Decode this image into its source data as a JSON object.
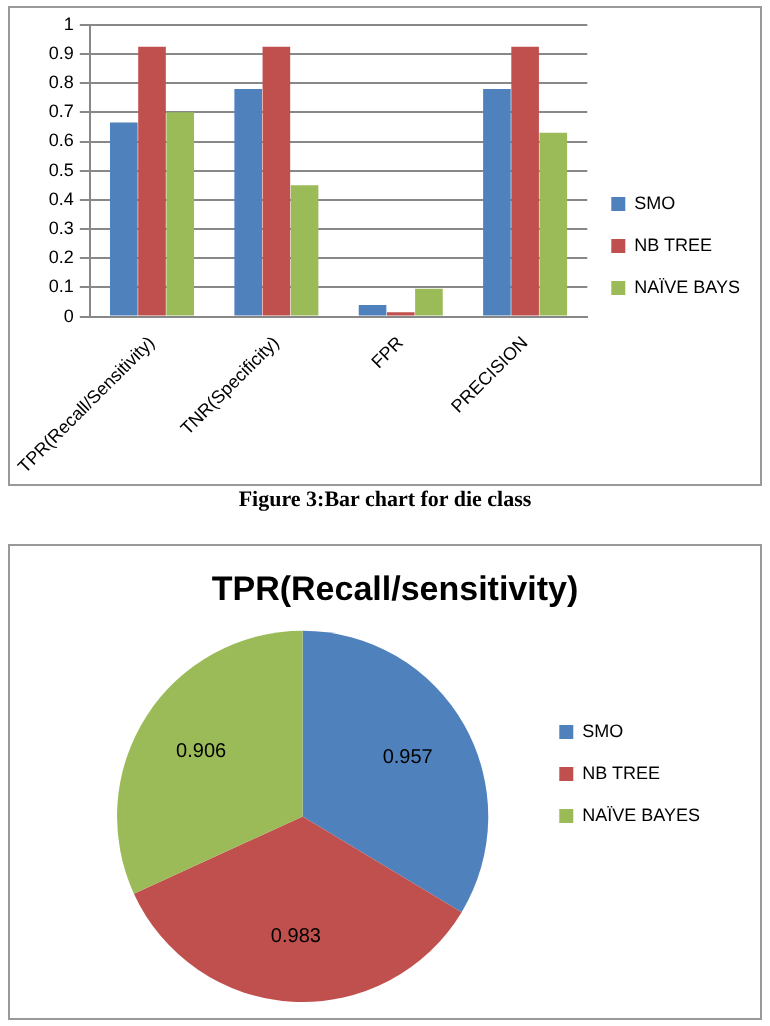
{
  "chart_data": [
    {
      "type": "bar",
      "categories": [
        "TPR(Recall/Sensitivity)",
        "TNR(Specificity)",
        "FPR",
        "PRECISION"
      ],
      "series": [
        {
          "name": "SMO",
          "color": "#4f81bd",
          "values": [
            0.665,
            0.78,
            0.04,
            0.78
          ]
        },
        {
          "name": "NB TREE",
          "color": "#c0504d",
          "values": [
            0.925,
            0.925,
            0.015,
            0.925
          ]
        },
        {
          "name": "NAÏVE BAYS",
          "color": "#9bbb59",
          "values": [
            0.7,
            0.45,
            0.095,
            0.63
          ]
        }
      ],
      "ylim": [
        0,
        1
      ],
      "yticks": [
        0,
        0.1,
        0.2,
        0.3,
        0.4,
        0.5,
        0.6,
        0.7,
        0.8,
        0.9,
        1
      ],
      "grid": "y",
      "legend": "right",
      "annotations": [
        "Figure 3:Bar chart for die class"
      ]
    },
    {
      "type": "pie",
      "title": "TPR(Recall/sensitivity)",
      "categories": [
        "SMO",
        "NB TREE",
        "NAÏVE BAYES"
      ],
      "values": [
        0.957,
        0.983,
        0.906
      ],
      "colors": [
        "#4f81bd",
        "#c0504d",
        "#9bbb59"
      ],
      "data_labels": true,
      "legend": "right"
    }
  ]
}
